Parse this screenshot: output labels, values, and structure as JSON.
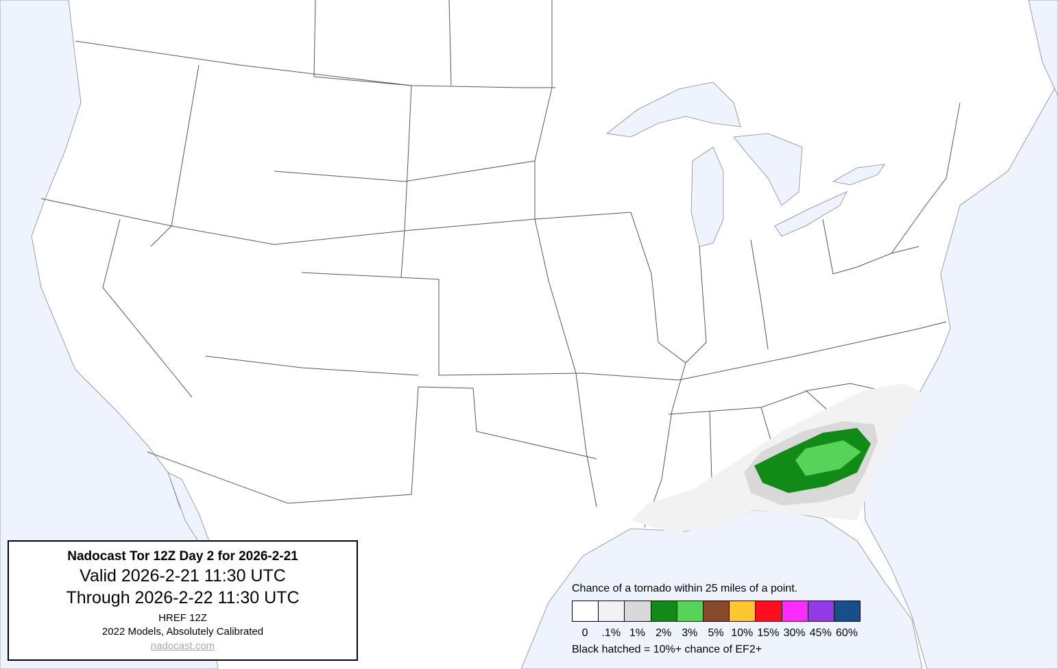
{
  "info": {
    "title": "Nadocast Tor 12Z Day 2 for 2026-2-21",
    "valid": "Valid 2026-2-21 11:30 UTC",
    "through": "Through 2026-2-22 11:30 UTC",
    "model": "HREF 12Z",
    "calibration": "2022 Models, Absolutely Calibrated",
    "link": "nadocast.com"
  },
  "legend": {
    "title": "Chance of a tornado within 25 miles of a point.",
    "items": [
      {
        "label": "0",
        "color": "#ffffff"
      },
      {
        "label": ".1%",
        "color": "#f2f2f2"
      },
      {
        "label": "1%",
        "color": "#d9d9d9"
      },
      {
        "label": "2%",
        "color": "#128a17"
      },
      {
        "label": "3%",
        "color": "#56d358"
      },
      {
        "label": "5%",
        "color": "#88492b"
      },
      {
        "label": "10%",
        "color": "#fec732"
      },
      {
        "label": "15%",
        "color": "#fe0c1f"
      },
      {
        "label": "30%",
        "color": "#fe2bfe"
      },
      {
        "label": "45%",
        "color": "#923ae8"
      },
      {
        "label": "60%",
        "color": "#175089"
      }
    ],
    "footnote": "Black hatched = 10%+ chance of EF2+"
  },
  "map": {
    "water_color": "#eef3fd",
    "forecast_levels_shown": [
      ".1%",
      "1%",
      "2%",
      "3%"
    ]
  }
}
